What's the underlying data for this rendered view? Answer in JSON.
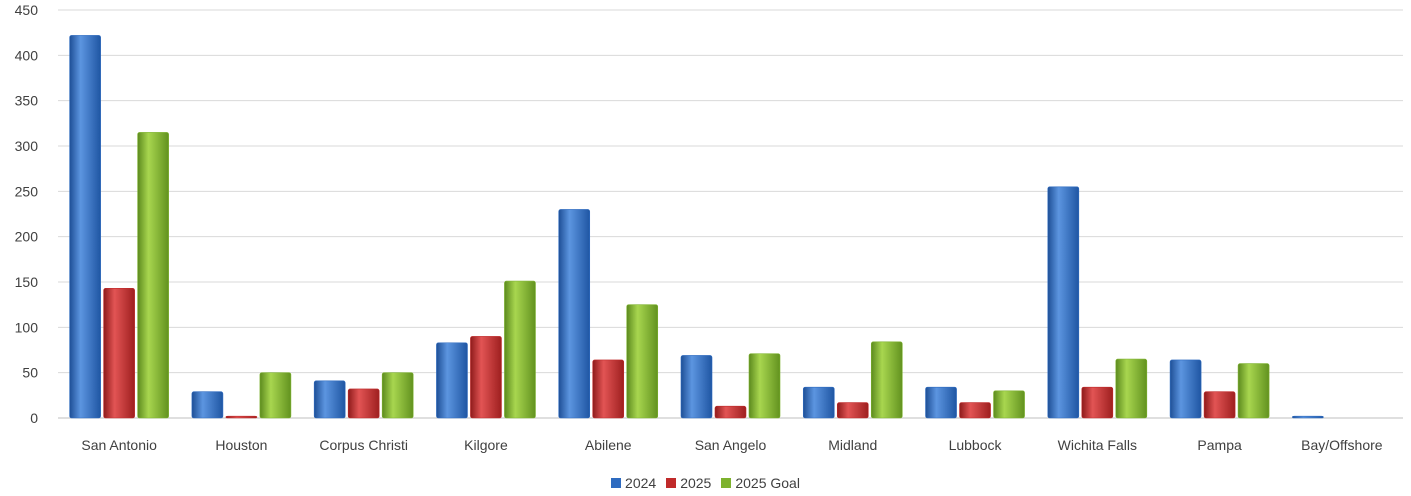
{
  "chart_data": {
    "type": "bar",
    "title": "",
    "xlabel": "",
    "ylabel": "",
    "categories": [
      "San Antonio",
      "Houston",
      "Corpus Christi",
      "Kilgore",
      "Abilene",
      "San Angelo",
      "Midland",
      "Lubbock",
      "Wichita Falls",
      "Pampa",
      "Bay/Offshore"
    ],
    "series": [
      {
        "name": "2024",
        "color": "#2E6BC0",
        "values": [
          422,
          29,
          41,
          83,
          230,
          69,
          34,
          34,
          255,
          64,
          2
        ]
      },
      {
        "name": "2025",
        "color": "#C02A2A",
        "values": [
          143,
          2,
          32,
          90,
          64,
          13,
          17,
          17,
          34,
          29,
          0
        ]
      },
      {
        "name": "2025 Goal",
        "color": "#7DB22E",
        "values": [
          315,
          50,
          50,
          151,
          125,
          71,
          84,
          30,
          65,
          60,
          0
        ]
      }
    ],
    "ylim": [
      0,
      450
    ],
    "yticks": [
      0,
      50,
      100,
      150,
      200,
      250,
      300,
      350,
      400,
      450
    ],
    "grid": true,
    "legend_position": "bottom"
  }
}
